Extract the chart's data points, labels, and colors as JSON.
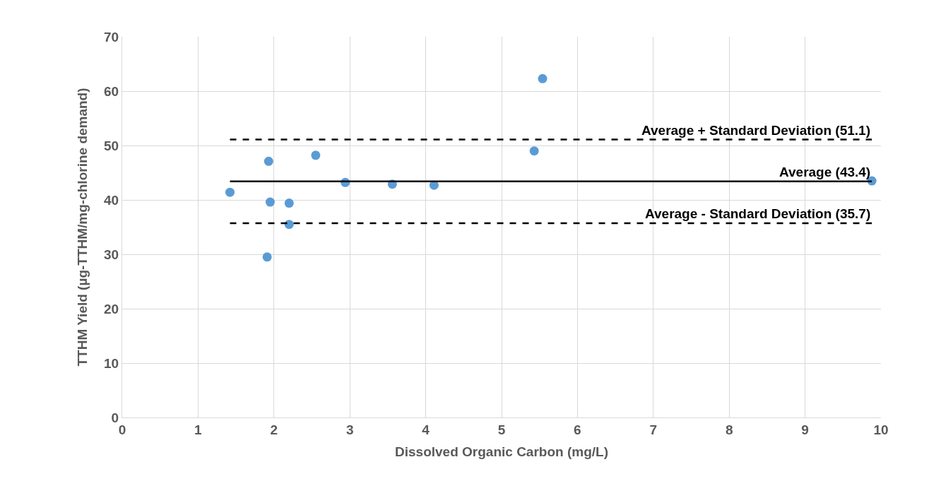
{
  "chart_data": {
    "type": "scatter",
    "xlabel": "Dissolved Organic Carbon (mg/L)",
    "ylabel": "TTHM Yield (µg-TTHM/mg-chlorine demand)",
    "x": [
      1.42,
      1.91,
      1.93,
      1.95,
      2.2,
      2.2,
      2.55,
      2.94,
      3.56,
      4.11,
      5.43,
      5.54,
      9.88
    ],
    "series": [
      {
        "color": "#5b9bd5",
        "values": [
          41.4,
          29.5,
          47.1,
          39.6,
          39.4,
          35.5,
          48.2,
          43.2,
          42.9,
          42.7,
          49.0,
          62.3,
          43.5
        ]
      }
    ],
    "xlim": [
      0,
      10
    ],
    "xticks": [
      0,
      1,
      2,
      3,
      4,
      5,
      6,
      7,
      8,
      9,
      10
    ],
    "ylim": [
      0,
      70
    ],
    "yticks": [
      0,
      10,
      20,
      30,
      40,
      50,
      60,
      70
    ],
    "grid": true,
    "marker": "circle",
    "ref_lines": [
      {
        "axis": "y",
        "value": 51.1,
        "label": "Average + Standard Deviation (51.1)",
        "color": "#000000",
        "line_style": "dashed"
      },
      {
        "axis": "y",
        "value": 43.4,
        "label": "Average (43.4)",
        "color": "#000000",
        "line_style": "solid"
      },
      {
        "axis": "y",
        "value": 35.7,
        "label": "Average - Standard Deviation (35.7)",
        "color": "#000000",
        "line_style": "dashed"
      }
    ]
  }
}
